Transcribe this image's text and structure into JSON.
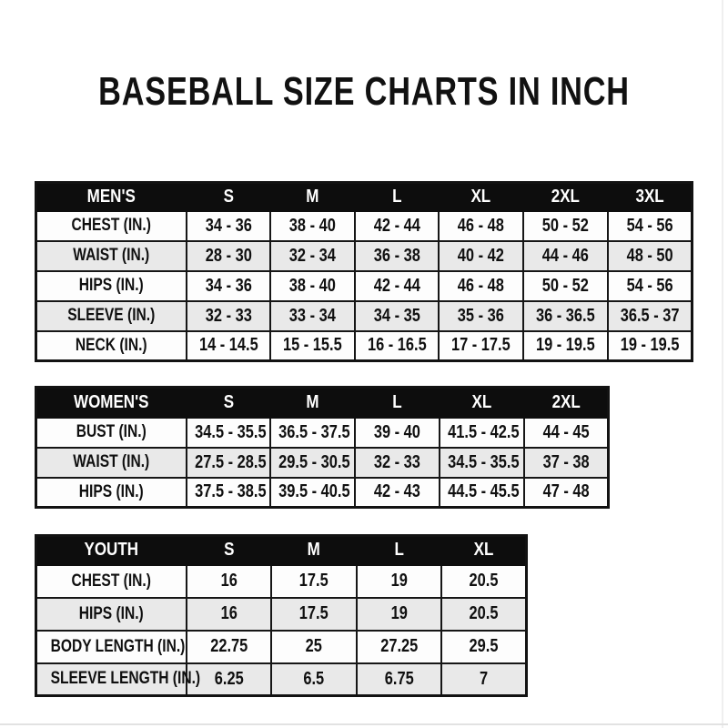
{
  "title": "BASEBALL SIZE CHARTS IN INCH",
  "colors": {
    "header_bg": "#0d0d0d",
    "header_text": "#ffffff",
    "row_alt_bg": "#e9e9e9",
    "border": "#161616",
    "text": "#101010"
  },
  "tables": [
    {
      "name": "MEN'S",
      "sizes": [
        "S",
        "M",
        "L",
        "XL",
        "2XL",
        "3XL"
      ],
      "rows": [
        {
          "label": "CHEST (IN.)",
          "values": [
            "34 - 36",
            "38 - 40",
            "42 - 44",
            "46 - 48",
            "50 - 52",
            "54 - 56"
          ]
        },
        {
          "label": "WAIST (IN.)",
          "values": [
            "28 - 30",
            "32 - 34",
            "36 - 38",
            "40 - 42",
            "44 - 46",
            "48 - 50"
          ]
        },
        {
          "label": "HIPS (IN.)",
          "values": [
            "34 - 36",
            "38 - 40",
            "42 - 44",
            "46 - 48",
            "50 - 52",
            "54 - 56"
          ]
        },
        {
          "label": "SLEEVE (IN.)",
          "values": [
            "32 - 33",
            "33 - 34",
            "34 - 35",
            "35 - 36",
            "36 - 36.5",
            "36.5 - 37"
          ]
        },
        {
          "label": "NECK (IN.)",
          "values": [
            "14 - 14.5",
            "15 - 15.5",
            "16 - 16.5",
            "17 - 17.5",
            "19 - 19.5",
            "19 - 19.5"
          ]
        }
      ]
    },
    {
      "name": "WOMEN'S",
      "sizes": [
        "S",
        "M",
        "L",
        "XL",
        "2XL"
      ],
      "rows": [
        {
          "label": "BUST (IN.)",
          "values": [
            "34.5 - 35.5",
            "36.5 - 37.5",
            "39 - 40",
            "41.5 - 42.5",
            "44 - 45"
          ]
        },
        {
          "label": "WAIST (IN.)",
          "values": [
            "27.5 - 28.5",
            "29.5 - 30.5",
            "32 - 33",
            "34.5 - 35.5",
            "37 - 38"
          ]
        },
        {
          "label": "HIPS (IN.)",
          "values": [
            "37.5 - 38.5",
            "39.5 - 40.5",
            "42 - 43",
            "44.5 - 45.5",
            "47 - 48"
          ]
        }
      ]
    },
    {
      "name": "YOUTH",
      "sizes": [
        "S",
        "M",
        "L",
        "XL"
      ],
      "rows": [
        {
          "label": "CHEST (IN.)",
          "values": [
            "16",
            "17.5",
            "19",
            "20.5"
          ]
        },
        {
          "label": "HIPS (IN.)",
          "values": [
            "16",
            "17.5",
            "19",
            "20.5"
          ]
        },
        {
          "label": "BODY LENGTH (IN.)",
          "values": [
            "22.75",
            "25",
            "27.25",
            "29.5"
          ]
        },
        {
          "label": "SLEEVE LENGTH (IN.)",
          "values": [
            "6.25",
            "6.5",
            "6.75",
            "7"
          ]
        }
      ]
    }
  ]
}
